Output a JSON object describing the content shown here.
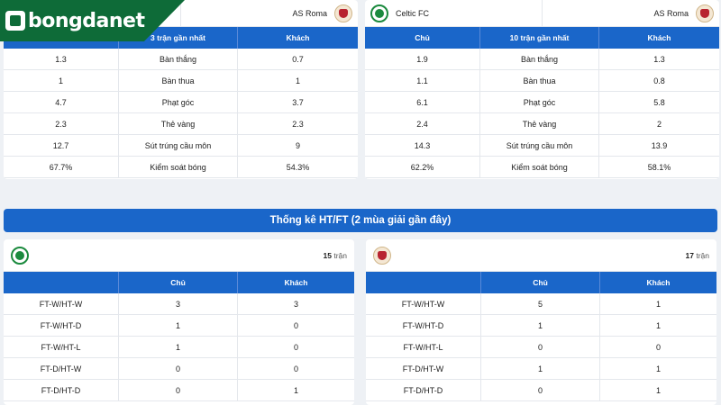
{
  "brand": {
    "name": "bongdanet"
  },
  "last3": {
    "left_team": "",
    "right_team": "AS Roma",
    "headers": [
      "",
      "3 trận gần nhất",
      "Khách"
    ],
    "rows": [
      [
        "1.3",
        "Bàn thắng",
        "0.7"
      ],
      [
        "1",
        "Bàn thua",
        "1"
      ],
      [
        "4.7",
        "Phạt góc",
        "3.7"
      ],
      [
        "2.3",
        "Thẻ vàng",
        "2.3"
      ],
      [
        "12.7",
        "Sút trúng cầu môn",
        "9"
      ],
      [
        "67.7%",
        "Kiểm soát bóng",
        "54.3%"
      ]
    ]
  },
  "last10": {
    "left_team": "Celtic FC",
    "right_team": "AS Roma",
    "headers": [
      "Chủ",
      "10 trận gần nhất",
      "Khách"
    ],
    "rows": [
      [
        "1.9",
        "Bàn thắng",
        "1.3"
      ],
      [
        "1.1",
        "Bàn thua",
        "0.8"
      ],
      [
        "6.1",
        "Phạt góc",
        "5.8"
      ],
      [
        "2.4",
        "Thẻ vàng",
        "2"
      ],
      [
        "14.3",
        "Sút trúng cầu môn",
        "13.9"
      ],
      [
        "62.2%",
        "Kiểm soát bóng",
        "58.1%"
      ]
    ]
  },
  "htft_title": "Thống kê HT/FT (2 mùa giải gần đây)",
  "htft_celtic": {
    "count": "15",
    "count_suffix": "trận",
    "headers": [
      "",
      "Chủ",
      "Khách"
    ],
    "rows": [
      [
        "FT-W/HT-W",
        "3",
        "3"
      ],
      [
        "FT-W/HT-D",
        "1",
        "0"
      ],
      [
        "FT-W/HT-L",
        "1",
        "0"
      ],
      [
        "FT-D/HT-W",
        "0",
        "0"
      ],
      [
        "FT-D/HT-D",
        "0",
        "1"
      ]
    ]
  },
  "htft_roma": {
    "count": "17",
    "count_suffix": "trận",
    "headers": [
      "",
      "Chủ",
      "Khách"
    ],
    "rows": [
      [
        "FT-W/HT-W",
        "5",
        "1"
      ],
      [
        "FT-W/HT-D",
        "1",
        "1"
      ],
      [
        "FT-W/HT-L",
        "0",
        "0"
      ],
      [
        "FT-D/HT-W",
        "1",
        "1"
      ],
      [
        "FT-D/HT-D",
        "0",
        "1"
      ]
    ]
  },
  "icons": {
    "celtic": "celtic-crest-icon",
    "roma": "roma-crest-icon",
    "brand": "bongdanet-logo-icon"
  },
  "colors": {
    "header_blue": "#1a66c9",
    "brand_green": "#0e6b38"
  }
}
